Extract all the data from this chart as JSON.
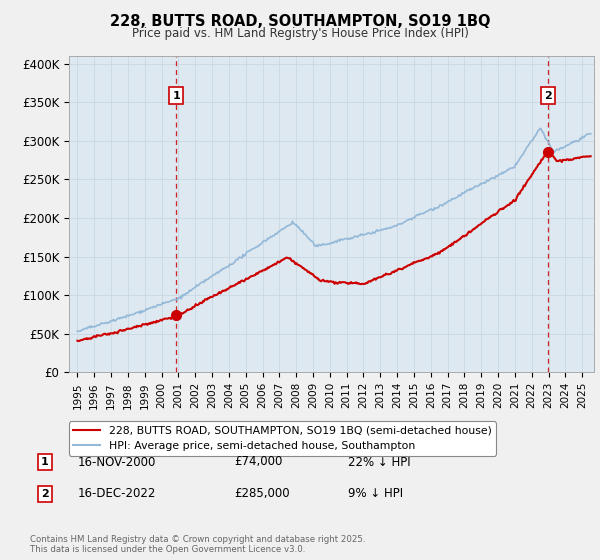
{
  "title": "228, BUTTS ROAD, SOUTHAMPTON, SO19 1BQ",
  "subtitle": "Price paid vs. HM Land Registry's House Price Index (HPI)",
  "ylabel_ticks": [
    "£0",
    "£50K",
    "£100K",
    "£150K",
    "£200K",
    "£250K",
    "£300K",
    "£350K",
    "£400K"
  ],
  "ytick_values": [
    0,
    50000,
    100000,
    150000,
    200000,
    250000,
    300000,
    350000,
    400000
  ],
  "ylim": [
    0,
    410000
  ],
  "xlim_start": 1994.5,
  "xlim_end": 2025.7,
  "hpi_color": "#93b8d8",
  "price_color": "#cc0000",
  "vline_color": "#cc0000",
  "plot_bg_color": "#dde8f0",
  "marker1_year": 2000.88,
  "marker1_price": 74000,
  "marker2_year": 2022.96,
  "marker2_price": 285000,
  "legend_label1": "228, BUTTS ROAD, SOUTHAMPTON, SO19 1BQ (semi-detached house)",
  "legend_label2": "HPI: Average price, semi-detached house, Southampton",
  "ann1_date": "16-NOV-2000",
  "ann1_price": "£74,000",
  "ann1_hpi": "22% ↓ HPI",
  "ann2_date": "16-DEC-2022",
  "ann2_price": "£285,000",
  "ann2_hpi": "9% ↓ HPI",
  "footer": "Contains HM Land Registry data © Crown copyright and database right 2025.\nThis data is licensed under the Open Government Licence v3.0.",
  "background_color": "#f0f0f0",
  "fig_width": 6.0,
  "fig_height": 5.6,
  "dpi": 100
}
